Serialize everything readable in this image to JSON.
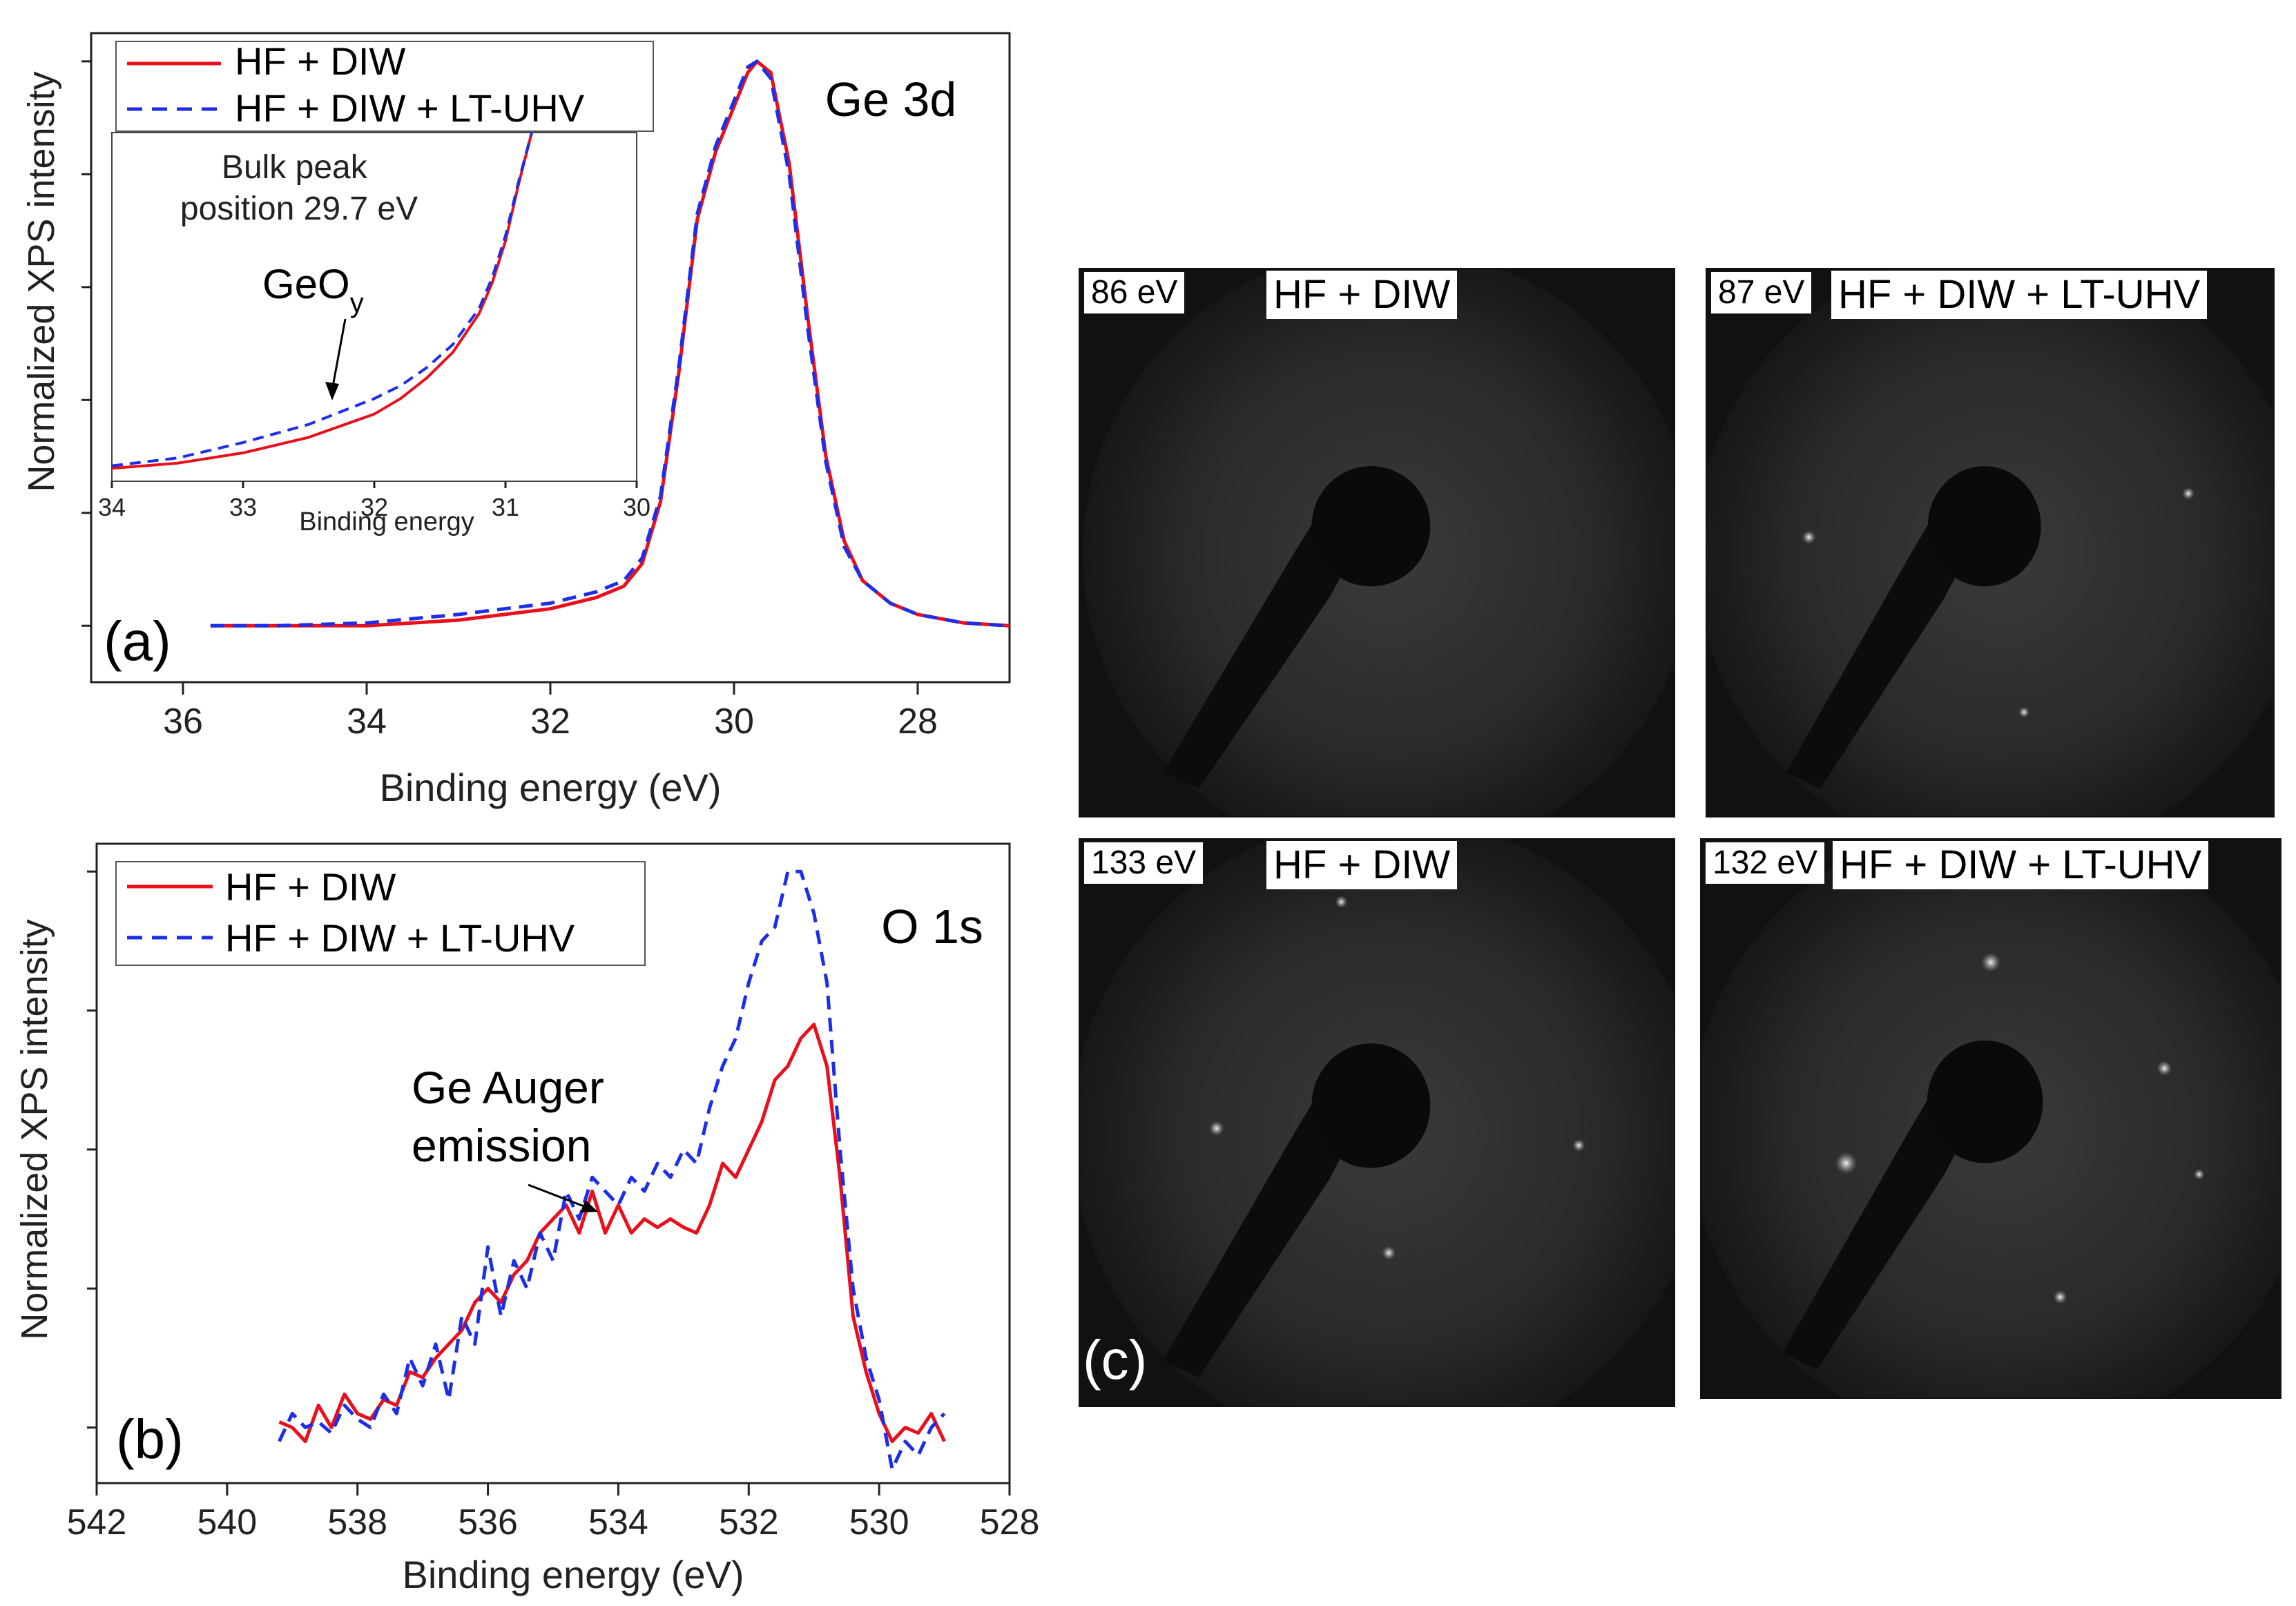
{
  "chart_data": [
    {
      "type": "line",
      "panel_label": "(a)",
      "annotation_title": "Ge 3d",
      "xlabel": "Binding energy (eV)",
      "ylabel": "Normalized XPS intensity",
      "xlim": [
        37,
        27
      ],
      "ylim": [
        -0.1,
        1.05
      ],
      "x_ticks": [
        "36",
        "34",
        "32",
        "30",
        "28"
      ],
      "x_tick_values": [
        36,
        34,
        32,
        30,
        28
      ],
      "y_tick_values": [
        0,
        0.2,
        0.4,
        0.6,
        0.8,
        1.0
      ],
      "legend": [
        "HF + DIW",
        "HF + DIW + LT-UHV"
      ],
      "series": [
        {
          "name": "HF + DIW",
          "color": "#e8101c",
          "style": "solid",
          "x": [
            35.7,
            35.0,
            34.0,
            33.0,
            32.0,
            31.5,
            31.2,
            31.0,
            30.8,
            30.6,
            30.4,
            30.2,
            30.0,
            29.85,
            29.75,
            29.6,
            29.4,
            29.2,
            29.0,
            28.8,
            28.6,
            28.3,
            28.0,
            27.5,
            27.0
          ],
          "values": [
            0.0,
            0.0,
            0.0,
            0.01,
            0.03,
            0.05,
            0.07,
            0.11,
            0.22,
            0.45,
            0.72,
            0.84,
            0.92,
            0.98,
            1.0,
            0.98,
            0.82,
            0.55,
            0.3,
            0.15,
            0.08,
            0.04,
            0.02,
            0.005,
            0.0
          ]
        },
        {
          "name": "HF + DIW + LT-UHV",
          "color": "#1c2ee8",
          "style": "dashed",
          "x": [
            35.7,
            35.0,
            34.0,
            33.0,
            32.0,
            31.5,
            31.2,
            31.0,
            30.8,
            30.6,
            30.4,
            30.2,
            30.0,
            29.85,
            29.75,
            29.6,
            29.4,
            29.2,
            29.0,
            28.8,
            28.6,
            28.3,
            28.0,
            27.5,
            27.0
          ],
          "values": [
            0.0,
            0.0,
            0.005,
            0.02,
            0.04,
            0.06,
            0.08,
            0.12,
            0.23,
            0.46,
            0.73,
            0.85,
            0.93,
            0.99,
            1.0,
            0.97,
            0.8,
            0.53,
            0.29,
            0.14,
            0.08,
            0.04,
            0.02,
            0.005,
            0.0
          ]
        }
      ],
      "inset": {
        "xlabel": "Binding energy",
        "xlim": [
          34,
          30
        ],
        "x_ticks": [
          "34",
          "33",
          "32",
          "31",
          "30"
        ],
        "x_tick_values": [
          34,
          33,
          32,
          31,
          30
        ],
        "ylim": [
          -0.005,
          0.13
        ],
        "annotation_title": "Bulk peak\nposition 29.7 eV",
        "annotation_arrow": "GeO",
        "annotation_arrow_sub": "y",
        "series": [
          {
            "name": "HF + DIW",
            "x": [
              34.0,
              33.5,
              33.0,
              32.5,
              32.0,
              31.8,
              31.6,
              31.4,
              31.2,
              31.1,
              31.0,
              30.9,
              30.8
            ],
            "values": [
              0.0,
              0.002,
              0.006,
              0.012,
              0.021,
              0.027,
              0.035,
              0.045,
              0.06,
              0.072,
              0.088,
              0.11,
              0.13
            ]
          },
          {
            "name": "HF + DIW + LT-UHV",
            "x": [
              34.0,
              33.5,
              33.0,
              32.5,
              32.0,
              31.8,
              31.6,
              31.4,
              31.2,
              31.1,
              31.0,
              30.9,
              30.8
            ],
            "values": [
              0.001,
              0.004,
              0.01,
              0.017,
              0.027,
              0.032,
              0.039,
              0.048,
              0.062,
              0.074,
              0.09,
              0.111,
              0.13
            ]
          }
        ]
      }
    },
    {
      "type": "line",
      "panel_label": "(b)",
      "annotation_title": "O 1s",
      "annotation_arrow": "Ge Auger\nemission",
      "xlabel": "Binding energy (eV)",
      "ylabel": "Normalized XPS intensity",
      "xlim": [
        542,
        528
      ],
      "ylim": [
        -0.2,
        2.1
      ],
      "x_ticks": [
        "542",
        "540",
        "538",
        "536",
        "534",
        "532",
        "530",
        "528"
      ],
      "x_tick_values": [
        542,
        540,
        538,
        536,
        534,
        532,
        530,
        528
      ],
      "y_tick_values": [
        0,
        0.5,
        1.0,
        1.5,
        2.0
      ],
      "legend": [
        "HF + DIW",
        "HF + DIW + LT-UHV"
      ],
      "series": [
        {
          "name": "HF + DIW",
          "color": "#e8101c",
          "style": "solid",
          "x": [
            539.2,
            539.0,
            538.8,
            538.6,
            538.4,
            538.2,
            538.0,
            537.8,
            537.6,
            537.4,
            537.2,
            537.0,
            536.8,
            536.6,
            536.4,
            536.2,
            536.0,
            535.8,
            535.6,
            535.4,
            535.2,
            535.0,
            534.8,
            534.6,
            534.4,
            534.2,
            534.0,
            533.8,
            533.6,
            533.4,
            533.2,
            533.0,
            532.8,
            532.6,
            532.4,
            532.2,
            532.0,
            531.8,
            531.6,
            531.4,
            531.2,
            531.0,
            530.8,
            530.6,
            530.4,
            530.2,
            530.0,
            529.8,
            529.6,
            529.4,
            529.2,
            529.0
          ],
          "values": [
            0.02,
            0.0,
            -0.05,
            0.08,
            0.0,
            0.12,
            0.05,
            0.03,
            0.1,
            0.08,
            0.2,
            0.18,
            0.25,
            0.3,
            0.35,
            0.45,
            0.5,
            0.45,
            0.55,
            0.6,
            0.7,
            0.75,
            0.8,
            0.7,
            0.85,
            0.7,
            0.8,
            0.7,
            0.75,
            0.72,
            0.75,
            0.72,
            0.7,
            0.8,
            0.95,
            0.9,
            1.0,
            1.1,
            1.25,
            1.3,
            1.4,
            1.45,
            1.3,
            0.9,
            0.4,
            0.2,
            0.05,
            -0.05,
            0.0,
            -0.02,
            0.05,
            -0.05
          ]
        },
        {
          "name": "HF + DIW + LT-UHV",
          "color": "#1c2ee8",
          "style": "dashed",
          "x": [
            539.2,
            539.0,
            538.8,
            538.6,
            538.4,
            538.2,
            538.0,
            537.8,
            537.6,
            537.4,
            537.2,
            537.0,
            536.8,
            536.6,
            536.4,
            536.2,
            536.0,
            535.8,
            535.6,
            535.4,
            535.2,
            535.0,
            534.8,
            534.6,
            534.4,
            534.2,
            534.0,
            533.8,
            533.6,
            533.4,
            533.2,
            533.0,
            532.8,
            532.6,
            532.4,
            532.2,
            532.0,
            531.8,
            531.6,
            531.4,
            531.2,
            531.0,
            530.8,
            530.6,
            530.4,
            530.2,
            530.0,
            529.8,
            529.6,
            529.4,
            529.2,
            529.0
          ],
          "values": [
            -0.05,
            0.05,
            0.0,
            0.02,
            -0.02,
            0.08,
            0.03,
            0.0,
            0.12,
            0.05,
            0.25,
            0.15,
            0.3,
            0.1,
            0.4,
            0.3,
            0.65,
            0.4,
            0.6,
            0.5,
            0.7,
            0.6,
            0.85,
            0.75,
            0.9,
            0.85,
            0.8,
            0.9,
            0.85,
            0.95,
            0.9,
            1.0,
            0.95,
            1.15,
            1.3,
            1.4,
            1.6,
            1.75,
            1.8,
            2.0,
            2.0,
            1.85,
            1.6,
            1.0,
            0.5,
            0.25,
            0.1,
            -0.15,
            -0.05,
            -0.1,
            0.0,
            0.05
          ]
        }
      ]
    }
  ],
  "leed_panels": [
    {
      "energy": "86 eV",
      "treatment": "HF + DIW",
      "spots": false
    },
    {
      "energy": "87 eV",
      "treatment": "HF + DIW + LT-UHV",
      "spots": true
    },
    {
      "energy": "133 eV",
      "treatment": "HF + DIW",
      "spots": true
    },
    {
      "energy": "132 eV",
      "treatment": "HF + DIW + LT-UHV",
      "spots": true
    }
  ],
  "panel_c_label": "(c)"
}
